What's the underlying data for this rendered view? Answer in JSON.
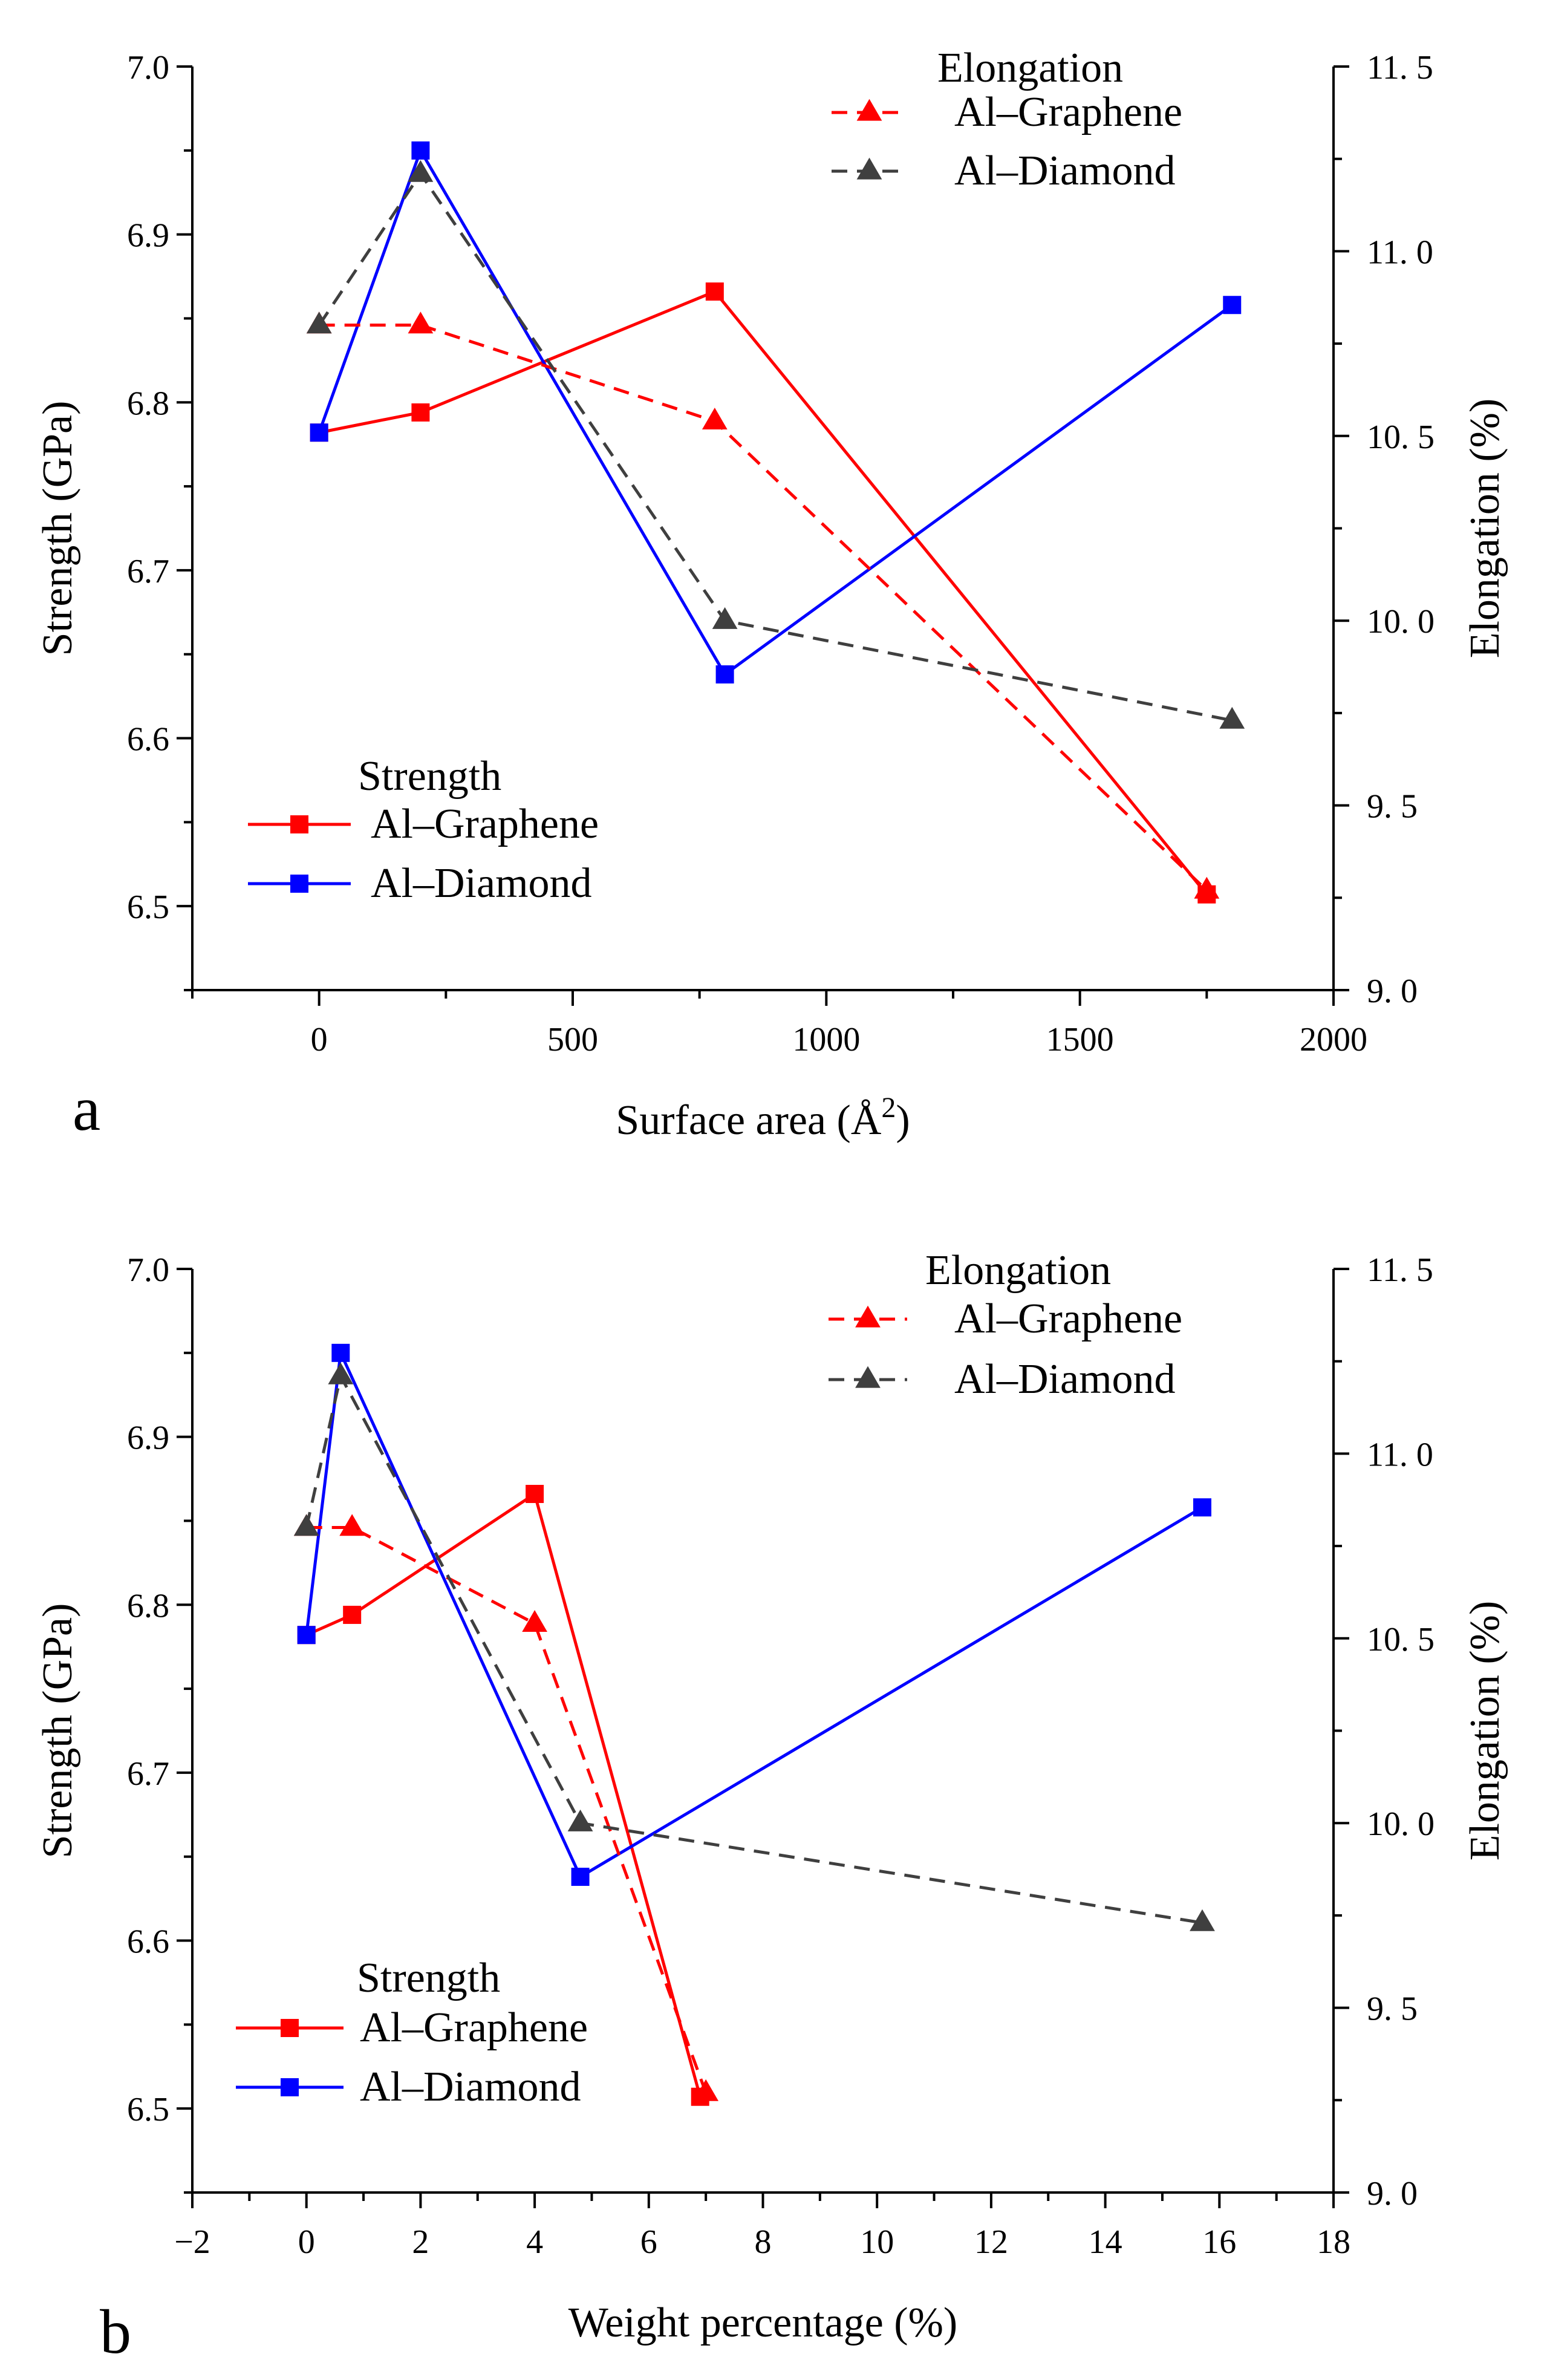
{
  "colors": {
    "al_graphene": "#ff0000",
    "al_diamond_strength": "#0000ff",
    "al_diamond_elongation": "#3f3f3f",
    "axis": "#000000"
  },
  "chart_data": [
    {
      "panel_label": "a",
      "type": "line",
      "xlabel_prefix": "Surface area (Å",
      "xlabel_sup": "2",
      "xlabel_suffix": ")",
      "ylabel": "Strength (GPa)",
      "y2label": "Elongation (%)",
      "xlim": [
        -250,
        2000
      ],
      "ylim": [
        6.45,
        7.0
      ],
      "y2lim": [
        9.0,
        11.5
      ],
      "xticks": [
        0,
        500,
        1000,
        1500,
        2000
      ],
      "xtick_labels": [
        "0",
        "500",
        "1000",
        "1500",
        "2000"
      ],
      "yticks": [
        6.5,
        6.6,
        6.7,
        6.8,
        6.9,
        7.0
      ],
      "ytick_labels": [
        "6.5",
        "6.6",
        "6.7",
        "6.8",
        "6.9",
        "7.0"
      ],
      "y2ticks": [
        9.0,
        9.5,
        10.0,
        10.5,
        11.0,
        11.5
      ],
      "y2tick_labels": [
        "9. 0",
        "9. 5",
        "10. 0",
        "10. 5",
        "11. 0",
        "11. 5"
      ],
      "legend_strength_title": "Strength",
      "legend_elongation_title": "Elongation",
      "series": [
        {
          "name": "Al–Graphene",
          "group": "strength",
          "axis": "left",
          "color": "#ff0000",
          "dashed": false,
          "marker": "square",
          "x": [
            0,
            200,
            780,
            1750
          ],
          "y": [
            6.782,
            6.794,
            6.866,
            6.507
          ]
        },
        {
          "name": "Al–Diamond",
          "group": "strength",
          "axis": "left",
          "color": "#0000ff",
          "dashed": false,
          "marker": "square",
          "x": [
            0,
            200,
            800,
            1800
          ],
          "y": [
            6.782,
            6.95,
            6.638,
            6.858
          ]
        },
        {
          "name": "Al–Graphene",
          "group": "elongation",
          "axis": "right",
          "color": "#ff0000",
          "dashed": true,
          "marker": "triangle",
          "x": [
            0,
            200,
            780,
            1750
          ],
          "y": [
            10.8,
            10.8,
            10.54,
            9.27
          ]
        },
        {
          "name": "Al–Diamond",
          "group": "elongation",
          "axis": "right",
          "color": "#3f3f3f",
          "dashed": true,
          "marker": "triangle",
          "x": [
            0,
            200,
            800,
            1800
          ],
          "y": [
            10.8,
            11.21,
            10.0,
            9.73
          ]
        }
      ]
    },
    {
      "panel_label": "b",
      "type": "line",
      "xlabel_prefix": "Weight percentage (%)",
      "xlabel_sup": "",
      "xlabel_suffix": "",
      "ylabel": "Strength (GPa)",
      "y2label": "Elongation (%)",
      "xlim": [
        -2,
        18
      ],
      "ylim": [
        6.45,
        7.0
      ],
      "y2lim": [
        9.0,
        11.5
      ],
      "xticks": [
        -2,
        0,
        2,
        4,
        6,
        8,
        10,
        12,
        14,
        16,
        18
      ],
      "xtick_labels": [
        "−2",
        "0",
        "2",
        "4",
        "6",
        "8",
        "10",
        "12",
        "14",
        "16",
        "18"
      ],
      "yticks": [
        6.5,
        6.6,
        6.7,
        6.8,
        6.9,
        7.0
      ],
      "ytick_labels": [
        "6.5",
        "6.6",
        "6.7",
        "6.8",
        "6.9",
        "7.0"
      ],
      "y2ticks": [
        9.0,
        9.5,
        10.0,
        10.5,
        11.0,
        11.5
      ],
      "y2tick_labels": [
        "9. 0",
        "9. 5",
        "10. 0",
        "10. 5",
        "11. 0",
        "11. 5"
      ],
      "legend_strength_title": "Strength",
      "legend_elongation_title": "Elongation",
      "series": [
        {
          "name": "Al–Graphene",
          "group": "strength",
          "axis": "left",
          "color": "#ff0000",
          "dashed": false,
          "marker": "square",
          "x": [
            0,
            0.8,
            4.0,
            6.9
          ],
          "y": [
            6.782,
            6.794,
            6.866,
            6.507
          ]
        },
        {
          "name": "Al–Diamond",
          "group": "strength",
          "axis": "left",
          "color": "#0000ff",
          "dashed": false,
          "marker": "square",
          "x": [
            0,
            0.6,
            4.8,
            15.7
          ],
          "y": [
            6.782,
            6.95,
            6.638,
            6.858
          ]
        },
        {
          "name": "Al–Graphene",
          "group": "elongation",
          "axis": "right",
          "color": "#ff0000",
          "dashed": true,
          "marker": "triangle",
          "x": [
            0,
            0.8,
            4.0,
            7.0
          ],
          "y": [
            10.8,
            10.8,
            10.54,
            9.27
          ]
        },
        {
          "name": "Al–Diamond",
          "group": "elongation",
          "axis": "right",
          "color": "#3f3f3f",
          "dashed": true,
          "marker": "triangle",
          "x": [
            0,
            0.6,
            4.8,
            15.7
          ],
          "y": [
            10.8,
            11.21,
            10.0,
            9.73
          ]
        }
      ]
    }
  ]
}
